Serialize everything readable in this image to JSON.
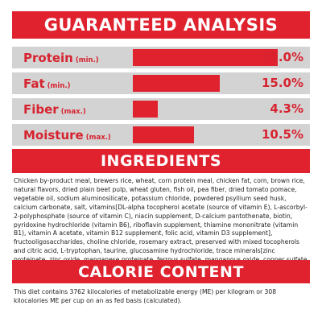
{
  "guaranteed_analysis": {
    "title": "GUARANTEED ANALYSIS",
    "rows": [
      {
        "name": "Protein",
        "qualifier": "(min.)",
        "value": "25.0%",
        "percent": 25.0
      },
      {
        "name": "Fat",
        "qualifier": "(min.)",
        "value": "15.0%",
        "percent": 15.0
      },
      {
        "name": "Fiber",
        "qualifier": "(max.)",
        "value": "4.3%",
        "percent": 4.3
      },
      {
        "name": "Moisture",
        "qualifier": "(max.)",
        "value": "10.5%",
        "percent": 10.5
      }
    ]
  },
  "ingredients": {
    "title": "INGREDIENTS",
    "text": "Chicken by-product meal, brewers rice, wheat, corn protein meal, chicken fat, corn, brown rice, natural flavors, dried plain beet pulp, wheat gluten, fish oil, pea fiber, dried tomato pomace, vegetable oil, sodium aluminosilicate, potassium chloride, powdered psyllium seed husk, calcium carbonate, salt, vitamins[DL-alpha tocopherol acetate (source of vitamin E), L-ascorbyl-2-polyphosphate (source of vitamin C), niacin supplement, D-calcium pantothenate, biotin, pyridoxine hydrochloride (vitamin B6), riboflavin supplement, thiamine mononitrate (vitamin B1), vitamin A acetate, vitamin B12 supplement, folic acid, vitamin D3 supplement], fructooligosaccharides, choline chloride, rosemary extract, preserved with mixed tocopherols and citric acid, L-tryptophan, taurine, glucosamine hydrochloride, trace minerals[zinc proteinate, zinc oxide, manganese proteinate, ferrous sulfate, manganous oxide, copper sulfate, sodium selenite, calcium iodate, copper proteinate], GLA safflower oil, L-carnitine, marigold extract (Tagetes erecta L.), green tea extract, chondroitin sulfate."
  },
  "calorie_content": {
    "title": "CALORIE CONTENT",
    "text": "This diet contains 3762 kilocalories of metabolizable energy (ME) per kilogram or 308 kilocalories ME per cup on an as fed basis (calculated)."
  },
  "colors": {
    "accent": "#e0212e",
    "row_background": "#d3d3d3"
  }
}
